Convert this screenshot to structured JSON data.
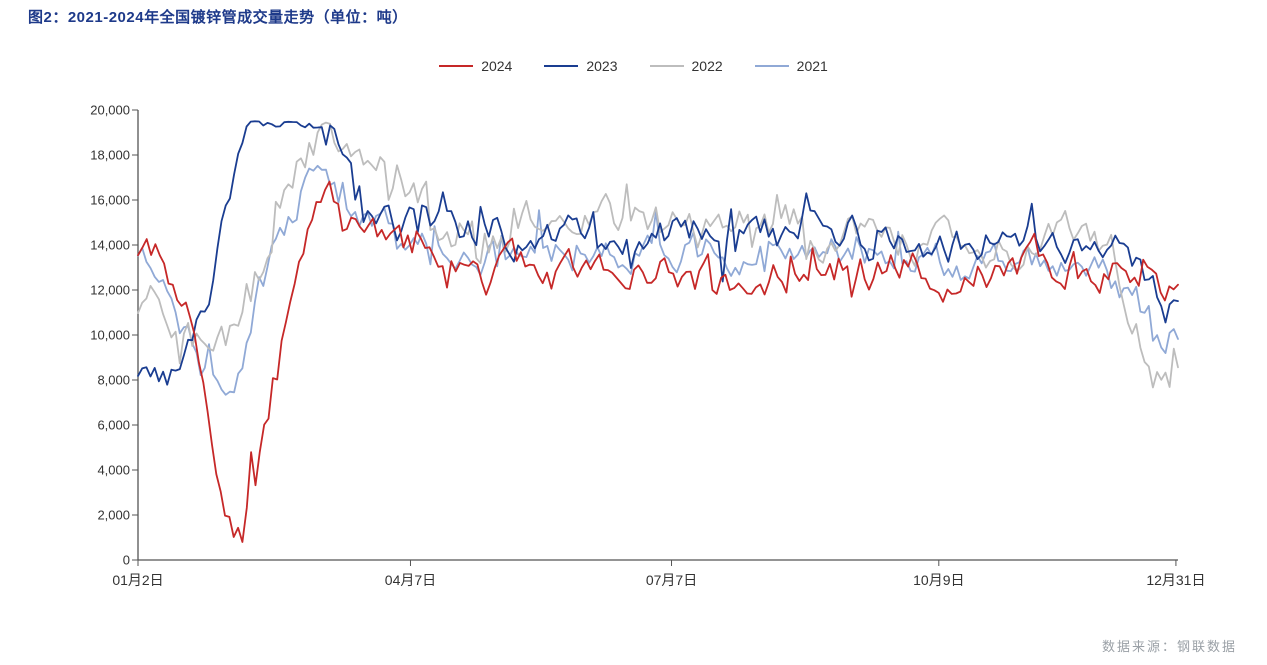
{
  "title": "图2：2021-2024年全国镀锌管成交量走势（单位：吨）",
  "source": "数据来源：钢联数据",
  "chart": {
    "type": "line",
    "background_color": "#ffffff",
    "line_width": 1.8,
    "ylim": [
      0,
      20000
    ],
    "ytick_step": 2000,
    "ytick_labels": [
      "0",
      "2,000",
      "4,000",
      "6,000",
      "8,000",
      "10,000",
      "12,000",
      "14,000",
      "16,000",
      "18,000",
      "20,000"
    ],
    "x_ticks": [
      {
        "pos": 0.0,
        "label": "01月2日"
      },
      {
        "pos": 0.262,
        "label": "04月7日"
      },
      {
        "pos": 0.513,
        "label": "07月7日"
      },
      {
        "pos": 0.77,
        "label": "10月9日"
      },
      {
        "pos": 0.998,
        "label": "12月31日"
      }
    ],
    "axis_color": "#555555",
    "label_color": "#333333",
    "label_fontsize": 13,
    "title_color": "#1e3a8a",
    "title_fontsize": 15,
    "legend": {
      "items": [
        {
          "label": "2024",
          "color": "#c62828"
        },
        {
          "label": "2023",
          "color": "#1a3d91"
        },
        {
          "label": "2022",
          "color": "#bdbdbd"
        },
        {
          "label": "2021",
          "color": "#90a9d6"
        }
      ]
    },
    "series": [
      {
        "name": "2021",
        "color": "#90a9d6",
        "n": 250,
        "seed": 21,
        "start": 13000,
        "dip_center": 0.07,
        "dip_depth": 9000,
        "dip_width": 0.045,
        "recov_center": 0.14,
        "recov_height": 4000,
        "recov_width": 0.05,
        "base_level": 13800,
        "late_drift": -1200,
        "end_anchor": 11600,
        "noise": 1300,
        "spike": 380
      },
      {
        "name": "2022",
        "color": "#bdbdbd",
        "n": 250,
        "seed": 22,
        "start": 11200,
        "dip_center": 0.075,
        "dip_depth": 7500,
        "dip_width": 0.05,
        "recov_center": 0.17,
        "recov_height": 5000,
        "recov_width": 0.06,
        "base_level": 14700,
        "late_drift": -800,
        "end_anchor": 8800,
        "noise": 1500,
        "spike": 450
      },
      {
        "name": "2023",
        "color": "#1a3d91",
        "n": 250,
        "seed": 23,
        "start": 8000,
        "dip_center": 0.055,
        "dip_depth": 6000,
        "dip_width": 0.04,
        "recov_center": 0.13,
        "recov_height": 8500,
        "recov_width": 0.05,
        "base_level": 14500,
        "late_drift": -500,
        "end_anchor": 11800,
        "noise": 1400,
        "spike": 420
      },
      {
        "name": "2024",
        "color": "#c62828",
        "n": 240,
        "seed": 24,
        "start": 13200,
        "dip_center": 0.095,
        "dip_depth": 12800,
        "dip_width": 0.035,
        "recov_center": 0.17,
        "recov_height": 3200,
        "recov_width": 0.06,
        "base_level": 12700,
        "late_drift": 400,
        "end_anchor": 11800,
        "noise": 1400,
        "spike": 420
      }
    ]
  }
}
